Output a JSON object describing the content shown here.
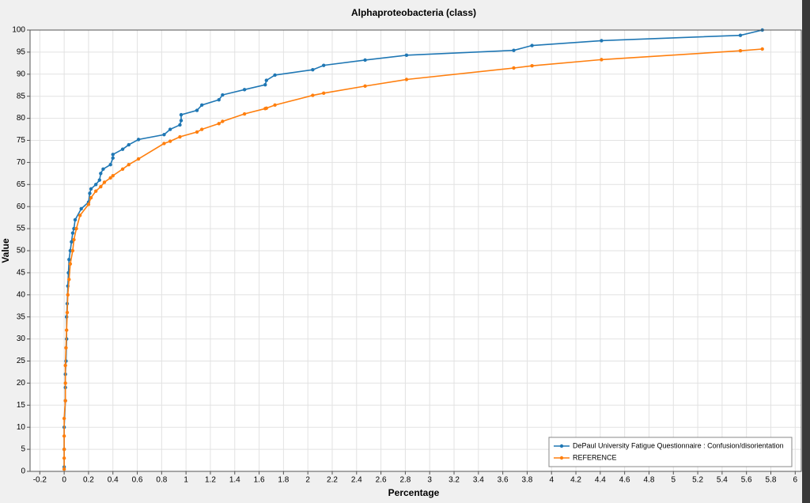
{
  "chart_data": {
    "type": "line",
    "title": "Alphaproteobacteria (class)",
    "x_label": "Percentage",
    "y_label": "Value",
    "xlim": [
      -0.28,
      6.05
    ],
    "ylim": [
      0,
      100
    ],
    "xticks": [
      -0.2,
      0,
      0.2,
      0.4,
      0.6,
      0.8,
      1,
      1.2,
      1.4,
      1.6,
      1.8,
      2,
      2.2,
      2.4,
      2.6,
      2.8,
      3,
      3.2,
      3.4,
      3.6,
      3.8,
      4,
      4.2,
      4.4,
      4.6,
      4.8,
      5,
      5.2,
      5.4,
      5.6,
      5.8,
      6
    ],
    "yticks": [
      0,
      5,
      10,
      15,
      20,
      25,
      30,
      35,
      40,
      45,
      50,
      55,
      60,
      65,
      70,
      75,
      80,
      85,
      90,
      95,
      100
    ],
    "grid": true,
    "legend": "lower right",
    "series": [
      {
        "name": "DePaul University Fatigue Questionnaire : Confusion/disorientation",
        "color": "#1f77b4",
        "x": [
          0,
          0,
          0,
          0.01,
          0.01,
          0.01,
          0.015,
          0.02,
          0.02,
          0.025,
          0.03,
          0.035,
          0.04,
          0.05,
          0.06,
          0.07,
          0.08,
          0.09,
          0.14,
          0.2,
          0.21,
          0.22,
          0.26,
          0.29,
          0.3,
          0.32,
          0.38,
          0.4,
          0.4,
          0.48,
          0.53,
          0.61,
          0.82,
          0.87,
          0.95,
          0.96,
          0.96,
          1.09,
          1.13,
          1.27,
          1.3,
          1.48,
          1.65,
          1.66,
          1.73,
          2.04,
          2.13,
          2.47,
          2.81,
          3.69,
          3.84,
          4.41,
          5.55,
          5.73
        ],
        "values": [
          1,
          5,
          10,
          16,
          19,
          22,
          25,
          30,
          35,
          38,
          42,
          45,
          48,
          50,
          52,
          54,
          55,
          57,
          59.5,
          61,
          63,
          64,
          65,
          66,
          67.5,
          68.5,
          69.5,
          71,
          71.8,
          73,
          74,
          75.2,
          76.3,
          77.5,
          78.5,
          79.5,
          80.8,
          81.8,
          83,
          84.2,
          85.3,
          86.5,
          87.6,
          88.6,
          89.8,
          91,
          92,
          93.2,
          94.3,
          95.4,
          96.5,
          97.6,
          98.8,
          100
        ]
      },
      {
        "name": "REFERENCE",
        "color": "#ff7f0e",
        "x": [
          0,
          0,
          0,
          0,
          0,
          0.01,
          0.01,
          0.01,
          0.015,
          0.02,
          0.025,
          0.03,
          0.04,
          0.05,
          0.07,
          0.08,
          0.1,
          0.13,
          0.2,
          0.22,
          0.26,
          0.3,
          0.33,
          0.38,
          0.4,
          0.48,
          0.53,
          0.61,
          0.82,
          0.87,
          0.95,
          1.09,
          1.13,
          1.27,
          1.3,
          1.48,
          1.65,
          1.66,
          1.73,
          2.04,
          2.13,
          2.47,
          2.81,
          3.69,
          3.84,
          4.41,
          5.55,
          5.73
        ],
        "values": [
          0.5,
          3,
          5,
          8,
          12,
          16,
          20,
          24,
          28,
          32,
          36,
          40,
          43.5,
          47,
          50,
          52.5,
          55,
          58,
          60.5,
          62,
          63.5,
          64.5,
          65.5,
          66.5,
          67,
          68.5,
          69.5,
          70.8,
          74.3,
          74.8,
          75.8,
          76.9,
          77.5,
          78.8,
          79.3,
          81,
          82.2,
          82.3,
          83,
          85.2,
          85.7,
          87.3,
          88.8,
          91.4,
          91.9,
          93.3,
          95.3,
          95.7
        ]
      }
    ]
  }
}
